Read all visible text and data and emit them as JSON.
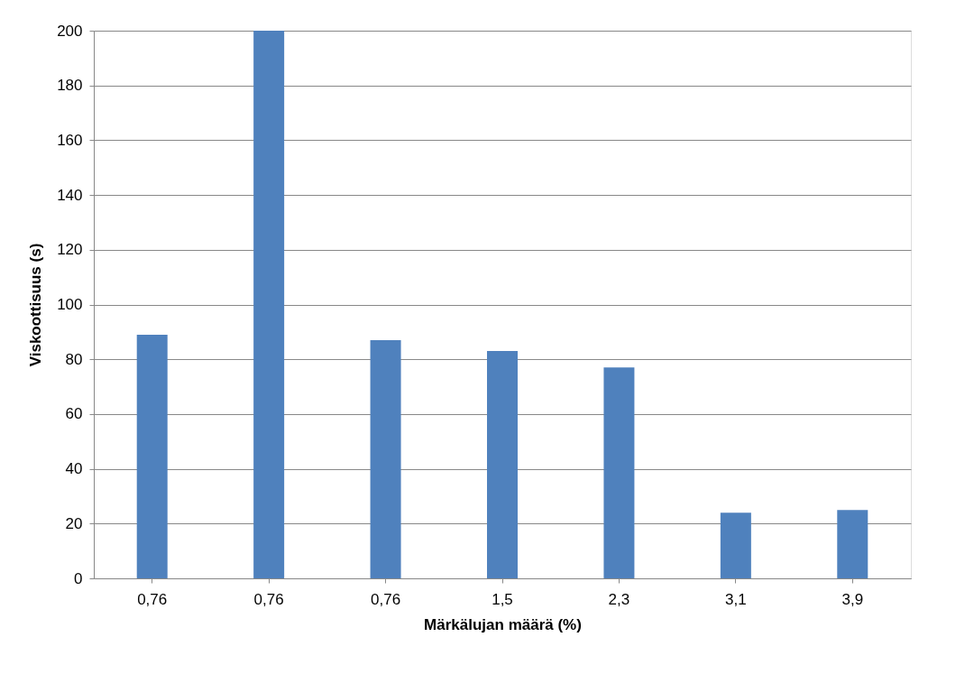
{
  "chart_data": {
    "type": "bar",
    "xlabel": "Märkälujan määrä (%)",
    "ylabel": "Viskoottisuus (s)",
    "categories": [
      "0,76",
      "0,76",
      "0,76",
      "1,5",
      "2,3",
      "3,1",
      "3,9"
    ],
    "values": [
      89,
      200,
      87,
      83,
      77,
      24,
      25
    ],
    "color": "#4f81bd",
    "ylim": [
      0,
      200
    ],
    "yticks": [
      0,
      20,
      40,
      60,
      80,
      100,
      120,
      140,
      160,
      180,
      200
    ],
    "grid": "y"
  }
}
